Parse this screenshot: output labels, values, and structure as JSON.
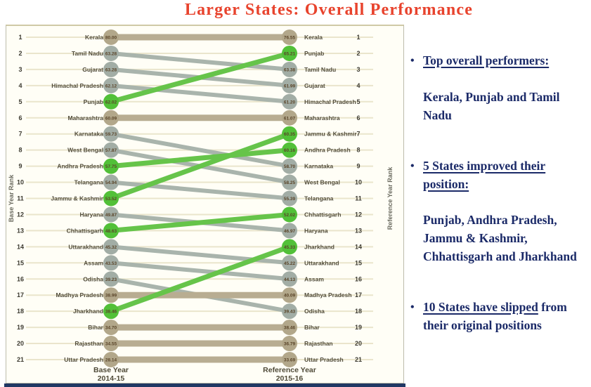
{
  "title": "Larger States: Overall Performance",
  "chart_data": {
    "type": "line",
    "subtype": "slope-bump-rank-chart",
    "title": "Larger States: Overall Performance",
    "left_axis_label": "Base Year Rank",
    "right_axis_label": "Reference Year Rank",
    "left_column": {
      "line1": "Base Year",
      "line2": "2014-15"
    },
    "right_column": {
      "line1": "Reference Year",
      "line2": "2015-16"
    },
    "rank_range": [
      1,
      21
    ],
    "legend_note": "green = improved rank, gray = slipped rank, tan = unchanged rank",
    "status_colors": {
      "improved": {
        "line": "#66c44a",
        "circle": "#52c038"
      },
      "slipped": {
        "line": "#a9b4ac",
        "circle": "#a2ada5"
      },
      "same": {
        "line": "#b8ad92",
        "circle": "#b2a78a"
      }
    },
    "states": [
      {
        "name": "Kerala",
        "base_rank": 1,
        "base_score": "80.00",
        "ref_rank": 1,
        "ref_score": "76.55",
        "status": "same"
      },
      {
        "name": "Tamil Nadu",
        "base_rank": 2,
        "base_score": "63.28",
        "ref_rank": 3,
        "ref_score": "63.38",
        "status": "slipped"
      },
      {
        "name": "Gujarat",
        "base_rank": 3,
        "base_score": "63.28",
        "ref_rank": 4,
        "ref_score": "61.99",
        "status": "slipped"
      },
      {
        "name": "Himachal Pradesh",
        "base_rank": 4,
        "base_score": "62.12",
        "ref_rank": 5,
        "ref_score": "61.20",
        "status": "slipped"
      },
      {
        "name": "Punjab",
        "base_rank": 5,
        "base_score": "62.02",
        "ref_rank": 2,
        "ref_score": "65.21",
        "status": "improved"
      },
      {
        "name": "Maharashtra",
        "base_rank": 6,
        "base_score": "60.09",
        "ref_rank": 6,
        "ref_score": "61.07",
        "status": "same"
      },
      {
        "name": "Karnataka",
        "base_rank": 7,
        "base_score": "59.73",
        "ref_rank": 9,
        "ref_score": "58.70",
        "status": "slipped"
      },
      {
        "name": "West Bengal",
        "base_rank": 8,
        "base_score": "57.87",
        "ref_rank": 10,
        "ref_score": "58.25",
        "status": "slipped"
      },
      {
        "name": "Andhra Pradesh",
        "base_rank": 9,
        "base_score": "57.75",
        "ref_rank": 8,
        "ref_score": "60.16",
        "status": "improved"
      },
      {
        "name": "Telangana",
        "base_rank": 10,
        "base_score": "54.94",
        "ref_rank": 11,
        "ref_score": "55.39",
        "status": "slipped"
      },
      {
        "name": "Jammu & Kashmir",
        "base_rank": 11,
        "base_score": "53.52",
        "ref_rank": 7,
        "ref_score": "60.35",
        "status": "improved"
      },
      {
        "name": "Haryana",
        "base_rank": 12,
        "base_score": "49.87",
        "ref_rank": 13,
        "ref_score": "46.97",
        "status": "slipped"
      },
      {
        "name": "Chhattisgarh",
        "base_rank": 13,
        "base_score": "48.63",
        "ref_rank": 12,
        "ref_score": "52.02",
        "status": "improved"
      },
      {
        "name": "Uttarakhand",
        "base_rank": 14,
        "base_score": "45.32",
        "ref_rank": 15,
        "ref_score": "45.22",
        "status": "slipped"
      },
      {
        "name": "Assam",
        "base_rank": 15,
        "base_score": "43.53",
        "ref_rank": 16,
        "ref_score": "44.13",
        "status": "slipped"
      },
      {
        "name": "Odisha",
        "base_rank": 16,
        "base_score": "39.23",
        "ref_rank": 18,
        "ref_score": "39.43",
        "status": "slipped"
      },
      {
        "name": "Madhya Pradesh",
        "base_rank": 17,
        "base_score": "38.99",
        "ref_rank": 17,
        "ref_score": "40.09",
        "status": "same"
      },
      {
        "name": "Jharkhand",
        "base_rank": 18,
        "base_score": "38.46",
        "ref_rank": 14,
        "ref_score": "45.33",
        "status": "improved"
      },
      {
        "name": "Bihar",
        "base_rank": 19,
        "base_score": "34.70",
        "ref_rank": 19,
        "ref_score": "38.46",
        "status": "same"
      },
      {
        "name": "Rajasthan",
        "base_rank": 20,
        "base_score": "34.55",
        "ref_rank": 20,
        "ref_score": "36.79",
        "status": "same"
      },
      {
        "name": "Uttar Pradesh",
        "base_rank": 21,
        "base_score": "28.14",
        "ref_rank": 21,
        "ref_score": "33.69",
        "status": "same"
      }
    ]
  },
  "side_panel": {
    "bullet_glyph": "•",
    "bullets": [
      {
        "underlined": "Top overall performers:",
        "rest": "",
        "body": "Kerala, Punjab and Tamil Nadu"
      },
      {
        "underlined": "5 States improved their position:",
        "rest": "",
        "body": "Punjab, Andhra Pradesh, Jammu & Kashmir, Chhattisgarh and Jharkhand"
      },
      {
        "underlined": "10 States have slipped",
        "rest": " from their original positions",
        "body": ""
      }
    ]
  },
  "colors": {
    "title_red": "#e8432d",
    "panel_navy": "#1b2a68",
    "chart_bg": "#fffef6",
    "gridline": "#eae5cc",
    "bottom_strip_navy": "#203864"
  }
}
